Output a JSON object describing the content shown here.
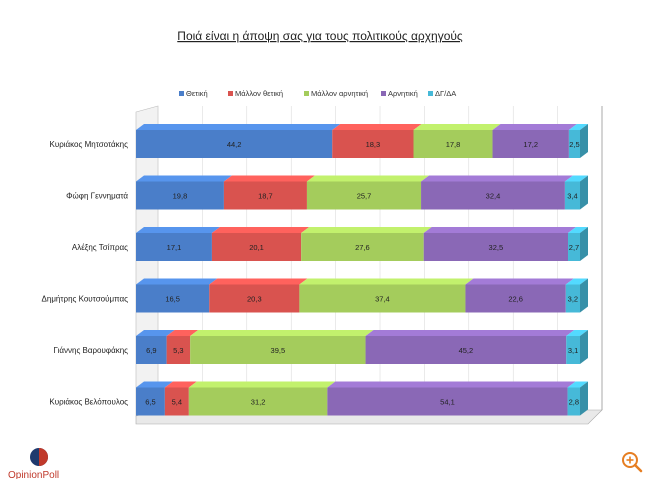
{
  "chart_data": {
    "type": "bar",
    "orientation": "horizontal",
    "stacked": true,
    "percent_stacked": true,
    "three_d": true,
    "title": "Ποιά είναι η άποψη σας για τους πολιτικούς αρχηγούς",
    "legend_position": "top",
    "grid": true,
    "xlim": [
      0,
      100
    ],
    "categories": [
      "Κυριάκος Μητσοτάκης",
      "Φώφη Γεννηματά",
      "Αλέξης Τσίπρας",
      "Δημήτρης Κουτσούμπας",
      "Γιάννης Βαρουφάκης",
      "Κυριάκος Βελόπουλος"
    ],
    "series": [
      {
        "name": "Θετική",
        "color": "#4a7ec9",
        "values": [
          44.2,
          19.8,
          17.1,
          16.5,
          6.9,
          6.5
        ],
        "labels": [
          "44,2",
          "19,8",
          "17,1",
          "16,5",
          "6,9",
          "6,5"
        ]
      },
      {
        "name": "Μάλλον θετική",
        "color": "#d9534f",
        "values": [
          18.3,
          18.7,
          20.1,
          20.3,
          5.3,
          5.4
        ],
        "labels": [
          "18,3",
          "18,7",
          "20,1",
          "20,3",
          "5,3",
          "5,4"
        ]
      },
      {
        "name": "Μάλλον αρνητική",
        "color": "#a4cc5c",
        "values": [
          17.8,
          25.7,
          27.6,
          37.4,
          39.5,
          31.2
        ],
        "labels": [
          "17,8",
          "25,7",
          "27,6",
          "37,4",
          "39,5",
          "31,2"
        ]
      },
      {
        "name": "Αρνητική",
        "color": "#8a68b6",
        "values": [
          17.2,
          32.4,
          32.5,
          22.6,
          45.2,
          54.1
        ],
        "labels": [
          "17,2",
          "32,4",
          "32,5",
          "22,6",
          "45,2",
          "54,1"
        ]
      },
      {
        "name": "ΔΓ/ΔΑ",
        "color": "#46b9d8",
        "values": [
          2.5,
          3.4,
          2.7,
          3.2,
          3.1,
          2.8
        ],
        "labels": [
          "2,5",
          "3,4",
          "2,7",
          "3,2",
          "3,1",
          "2,8"
        ]
      }
    ]
  },
  "branding": {
    "logo_text": "OpinionPoll",
    "logo_colors": [
      "#1f3a6e",
      "#c0392b"
    ]
  },
  "ui": {
    "zoom_icon": "zoom-in-icon",
    "zoom_color": "#e67e22"
  }
}
